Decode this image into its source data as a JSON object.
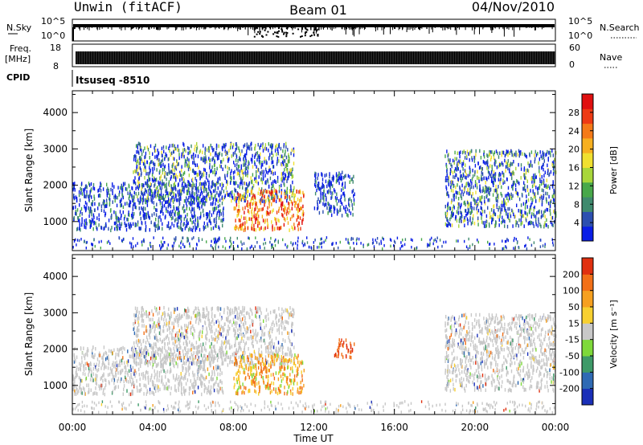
{
  "header": {
    "station": "Unwin (fitACF)",
    "beam": "Beam 01",
    "date": "04/Nov/2010"
  },
  "status_panels": {
    "nsky_label": "N.Sky",
    "nsky_ticks_left": [
      "10^5",
      "10^0"
    ],
    "nsky_ticks_right": [
      "10^5",
      "10^0"
    ],
    "nsearch_label": "N.Search",
    "freq_label_1": "Freq.",
    "freq_label_2": "[MHz]",
    "freq_ticks": [
      "18",
      "8"
    ],
    "nave_ticks": [
      "60",
      "0"
    ],
    "nave_label": "Nave",
    "cpid_label": "CPID",
    "cpid_value": "Itsuseq -8510"
  },
  "colorbars": {
    "power": {
      "label": "Power [dB]",
      "ticks": [
        "4",
        "8",
        "12",
        "16",
        "20",
        "24",
        "28"
      ],
      "colors": [
        "#0a1ee6",
        "#2c4fb0",
        "#3f8a6e",
        "#48a84a",
        "#a8d63a",
        "#f0e030",
        "#f7b020",
        "#f57a18",
        "#ee3a14",
        "#e01010"
      ]
    },
    "velocity": {
      "label": "Velocity [m s⁻¹]",
      "ticks": [
        "200",
        "100",
        "50",
        "15",
        "-15",
        "-50",
        "-100",
        "-200"
      ],
      "colors": [
        "#1a2fb8",
        "#2f6ab4",
        "#3e9a68",
        "#7ed93a",
        "#c8c8c8",
        "#f7d030",
        "#f6a020",
        "#f27018",
        "#e03010"
      ]
    }
  },
  "chart_data": [
    {
      "type": "heatmap",
      "parameter": "Power",
      "units": "dB",
      "xlabel": "Time UT",
      "ylabel": "Slant Range [km]",
      "x_range": [
        "00:00",
        "24:00"
      ],
      "ylim": [
        200,
        4600
      ],
      "x_ticks": [
        "00:00",
        "04:00",
        "08:00",
        "12:00",
        "16:00",
        "20:00",
        "00:00"
      ],
      "y_ticks": [
        1000,
        2000,
        3000,
        4000
      ],
      "scatter_regions": [
        {
          "x_start": 0.0,
          "x_end": 7.5,
          "range_low": 800,
          "range_high": 2100,
          "level": "low"
        },
        {
          "x_start": 3.0,
          "x_end": 11.0,
          "range_low": 1600,
          "range_high": 3200,
          "level": "low-mid"
        },
        {
          "x_start": 8.0,
          "x_end": 11.5,
          "range_low": 800,
          "range_high": 1900,
          "level": "high"
        },
        {
          "x_start": 12.0,
          "x_end": 14.0,
          "range_low": 1200,
          "range_high": 2400,
          "level": "low"
        },
        {
          "x_start": 18.5,
          "x_end": 24.0,
          "range_low": 900,
          "range_high": 3000,
          "level": "low-mid"
        }
      ]
    },
    {
      "type": "heatmap",
      "parameter": "Velocity",
      "units": "m s-1",
      "xlabel": "Time UT",
      "ylabel": "Slant Range [km]",
      "x_range": [
        "00:00",
        "24:00"
      ],
      "ylim": [
        200,
        4600
      ],
      "x_ticks": [
        "00:00",
        "04:00",
        "08:00",
        "12:00",
        "16:00",
        "20:00",
        "00:00"
      ],
      "y_ticks": [
        1000,
        2000,
        3000,
        4000
      ],
      "scatter_regions": [
        {
          "x_start": 0.0,
          "x_end": 7.5,
          "range_low": 800,
          "range_high": 2100,
          "level": "near-zero"
        },
        {
          "x_start": 3.0,
          "x_end": 11.0,
          "range_low": 1600,
          "range_high": 3200,
          "level": "near-zero"
        },
        {
          "x_start": 8.0,
          "x_end": 11.5,
          "range_low": 800,
          "range_high": 1900,
          "level": "away"
        },
        {
          "x_start": 13.0,
          "x_end": 14.0,
          "range_low": 1800,
          "range_high": 2300,
          "level": "strong-away"
        },
        {
          "x_start": 18.5,
          "x_end": 24.0,
          "range_low": 900,
          "range_high": 3000,
          "level": "near-zero"
        }
      ]
    }
  ]
}
